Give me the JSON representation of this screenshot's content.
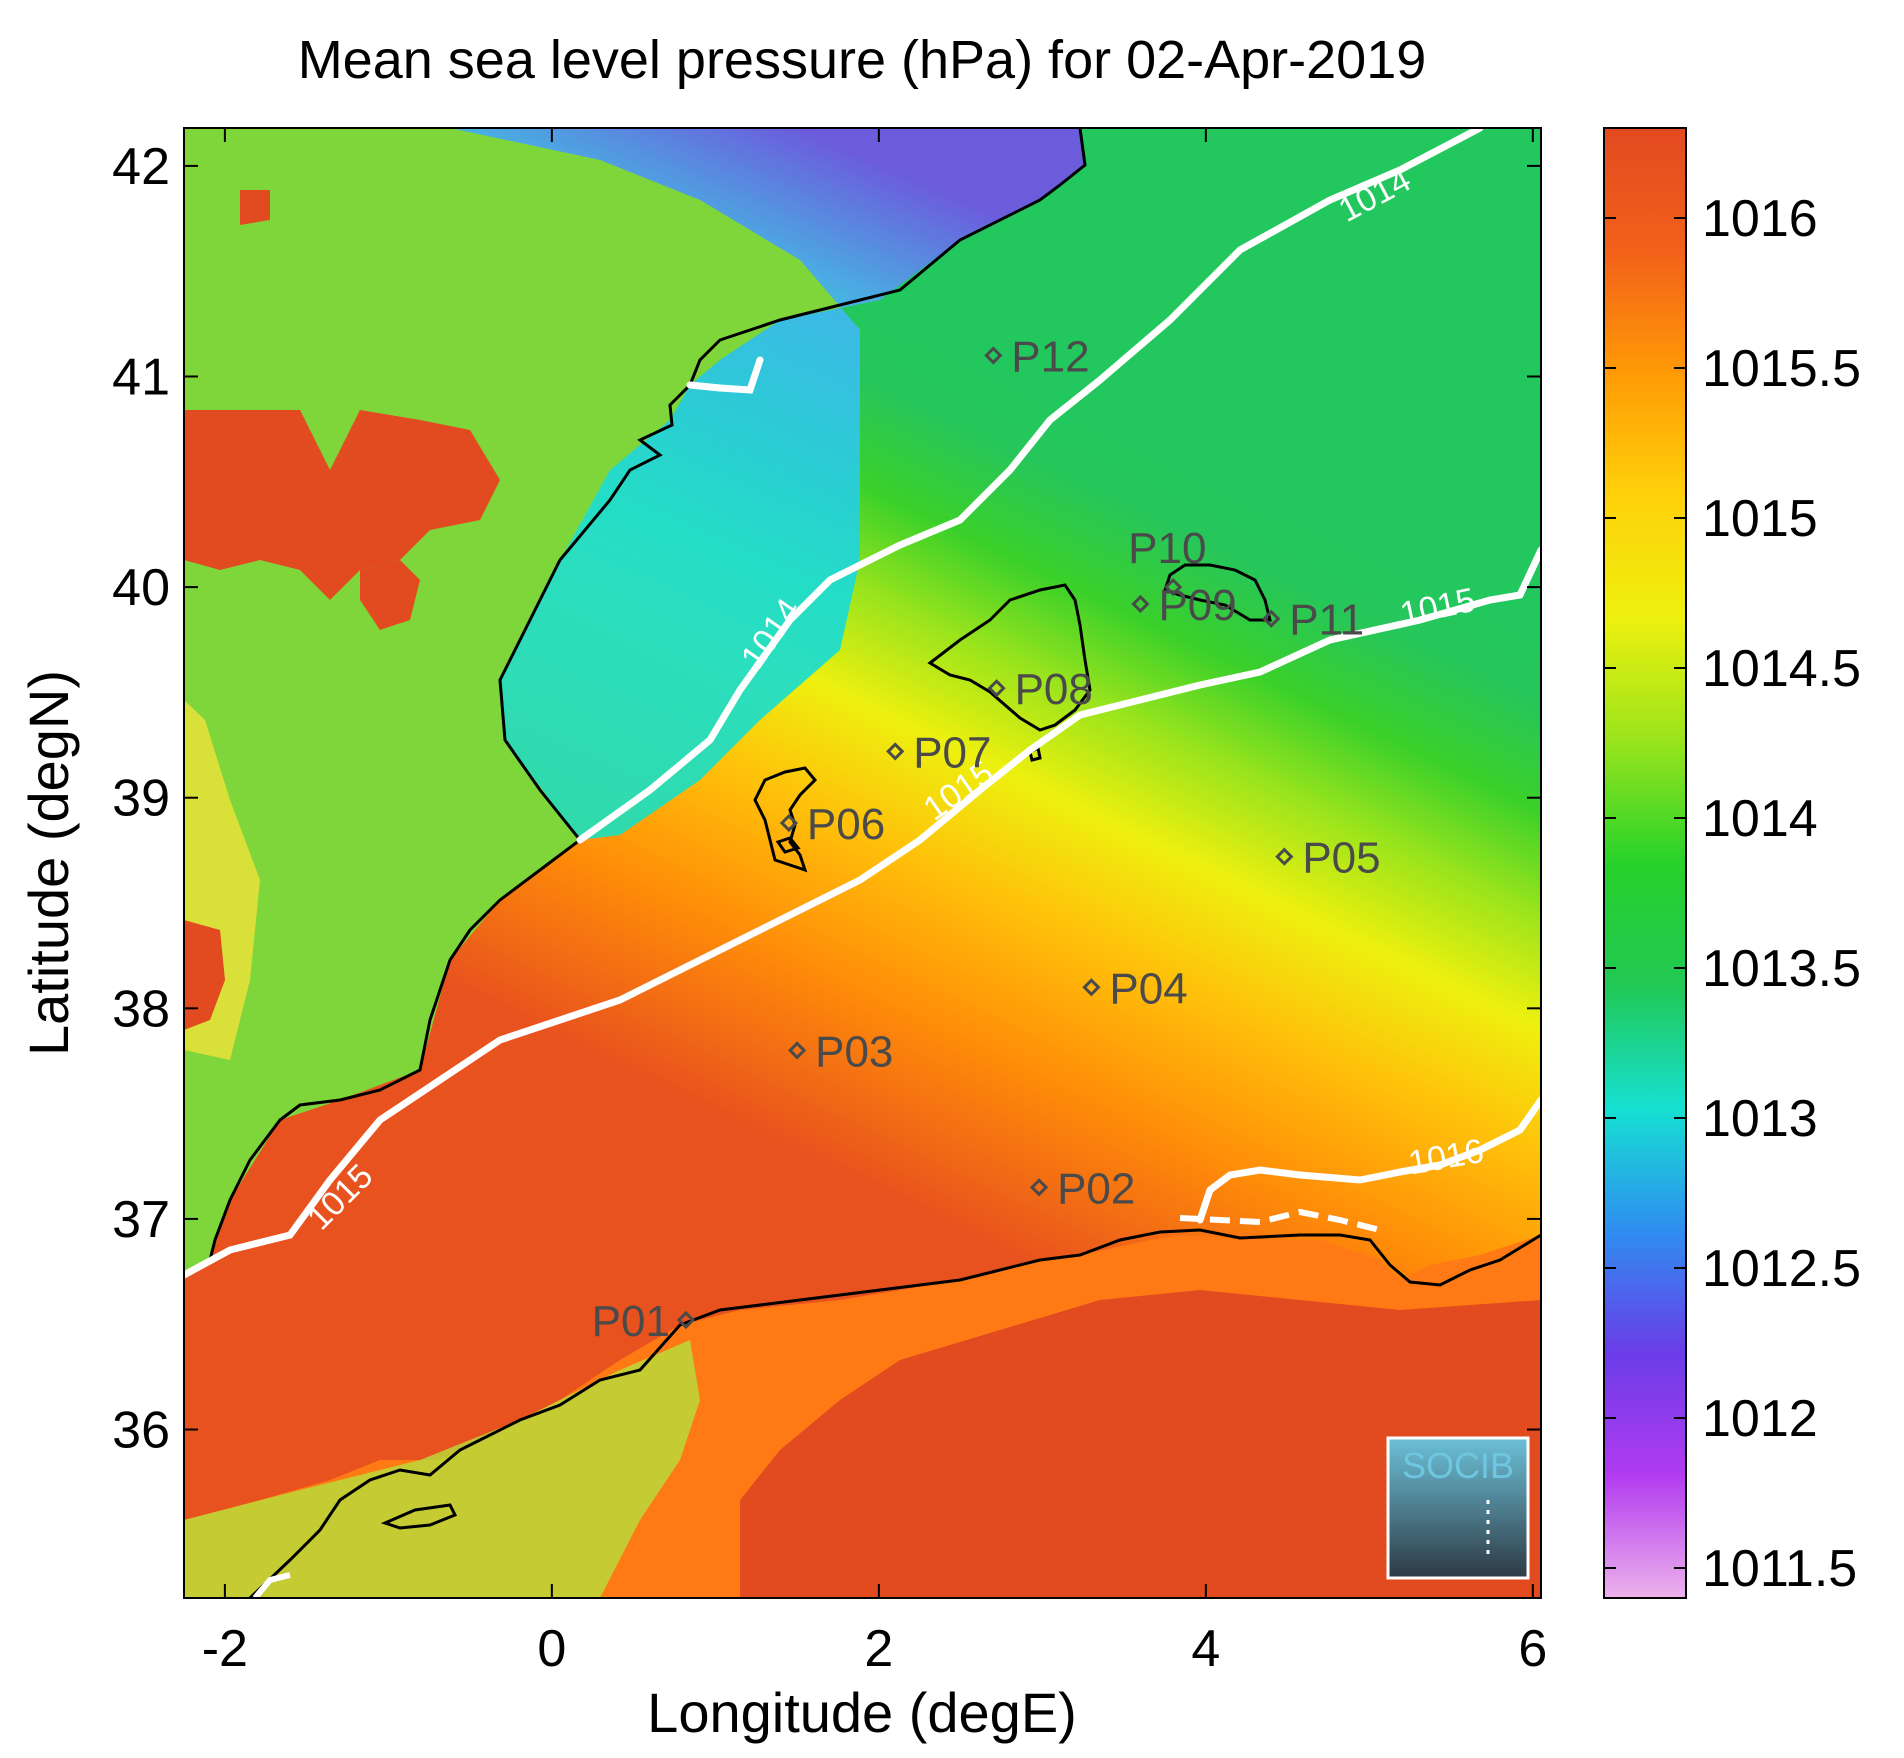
{
  "title": "Mean sea level pressure (hPa) for 02-Apr-2019",
  "map": {
    "xlabel": "Longitude (degE)",
    "ylabel": "Latitude (degN)",
    "xlim": [
      -2.25,
      6.05
    ],
    "ylim": [
      35.2,
      42.18
    ],
    "xticks": [
      "-2",
      "0",
      "2",
      "4",
      "6"
    ],
    "yticks": [
      "36",
      "37",
      "38",
      "39",
      "40",
      "41",
      "42"
    ]
  },
  "colorbar": {
    "range": [
      1011.4,
      1016.3
    ],
    "ticks": [
      "1011.5",
      "1012",
      "1012.5",
      "1013",
      "1013.5",
      "1014",
      "1014.5",
      "1015",
      "1015.5",
      "1016"
    ],
    "stops": [
      "#ecb2ec",
      "#b23bf0",
      "#6a3ce8",
      "#2f8ef0",
      "#16e0d2",
      "#21c854",
      "#27d22a",
      "#9ae41c",
      "#eef00e",
      "#ffd10a",
      "#ff9a06",
      "#f2601a",
      "#e24a20"
    ]
  },
  "contours": [
    {
      "label": "1014",
      "value": 1014
    },
    {
      "label": "1015",
      "value": 1015
    },
    {
      "label": "1016",
      "value": 1016
    }
  ],
  "points": [
    {
      "label": "P01",
      "lon": 0.82,
      "lat": 36.52
    },
    {
      "label": "P02",
      "lon": 2.98,
      "lat": 37.15
    },
    {
      "label": "P03",
      "lon": 1.5,
      "lat": 37.8
    },
    {
      "label": "P04",
      "lon": 3.3,
      "lat": 38.1
    },
    {
      "label": "P05",
      "lon": 4.48,
      "lat": 38.72
    },
    {
      "label": "P06",
      "lon": 1.45,
      "lat": 38.88
    },
    {
      "label": "P07",
      "lon": 2.1,
      "lat": 39.22
    },
    {
      "label": "P08",
      "lon": 2.72,
      "lat": 39.52
    },
    {
      "label": "P09",
      "lon": 3.6,
      "lat": 39.92
    },
    {
      "label": "P10",
      "lon": 3.8,
      "lat": 40.0
    },
    {
      "label": "P11",
      "lon": 4.4,
      "lat": 39.85
    },
    {
      "label": "P12",
      "lon": 2.7,
      "lat": 41.1
    }
  ],
  "logo": {
    "text": "SOCIB"
  },
  "colors": {
    "coast": "#000000",
    "contour": "#ffffff",
    "marker": "#4a4a4a",
    "logo": "#5fc4e0"
  }
}
